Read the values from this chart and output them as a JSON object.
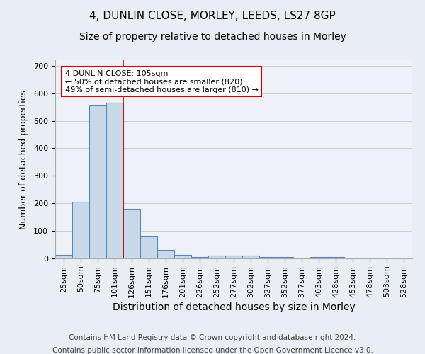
{
  "title1": "4, DUNLIN CLOSE, MORLEY, LEEDS, LS27 8GP",
  "title2": "Size of property relative to detached houses in Morley",
  "xlabel": "Distribution of detached houses by size in Morley",
  "ylabel": "Number of detached properties",
  "footnote1": "Contains HM Land Registry data © Crown copyright and database right 2024.",
  "footnote2": "Contains public sector information licensed under the Open Government Licence v3.0.",
  "bar_labels": [
    "25sqm",
    "50sqm",
    "75sqm",
    "101sqm",
    "126sqm",
    "151sqm",
    "176sqm",
    "201sqm",
    "226sqm",
    "252sqm",
    "277sqm",
    "302sqm",
    "327sqm",
    "352sqm",
    "377sqm",
    "403sqm",
    "428sqm",
    "453sqm",
    "478sqm",
    "503sqm",
    "528sqm"
  ],
  "bar_values": [
    12,
    205,
    555,
    565,
    180,
    80,
    30,
    14,
    5,
    10,
    10,
    10,
    5,
    5,
    0,
    5,
    5,
    0,
    0,
    0,
    0
  ],
  "bar_color": "#c8d8e8",
  "bar_edge_color": "#5588bb",
  "bar_edge_width": 0.8,
  "red_line_index": 3.5,
  "red_line_label": "4 DUNLIN CLOSE: 105sqm",
  "annotation_line1": "← 50% of detached houses are smaller (820)",
  "annotation_line2": "49% of semi-detached houses are larger (810) →",
  "annotation_box_color": "#ffffff",
  "annotation_border_color": "#cc0000",
  "ylim": [
    0,
    720
  ],
  "yticks": [
    0,
    100,
    200,
    300,
    400,
    500,
    600,
    700
  ],
  "grid_color": "#cccccc",
  "bg_color": "#e8eef4",
  "plot_bg_color": "#eef2f8",
  "title1_fontsize": 11,
  "title2_fontsize": 10,
  "xlabel_fontsize": 10,
  "ylabel_fontsize": 9,
  "tick_fontsize": 8,
  "footnote_fontsize": 7.5,
  "annot_fontsize": 8
}
